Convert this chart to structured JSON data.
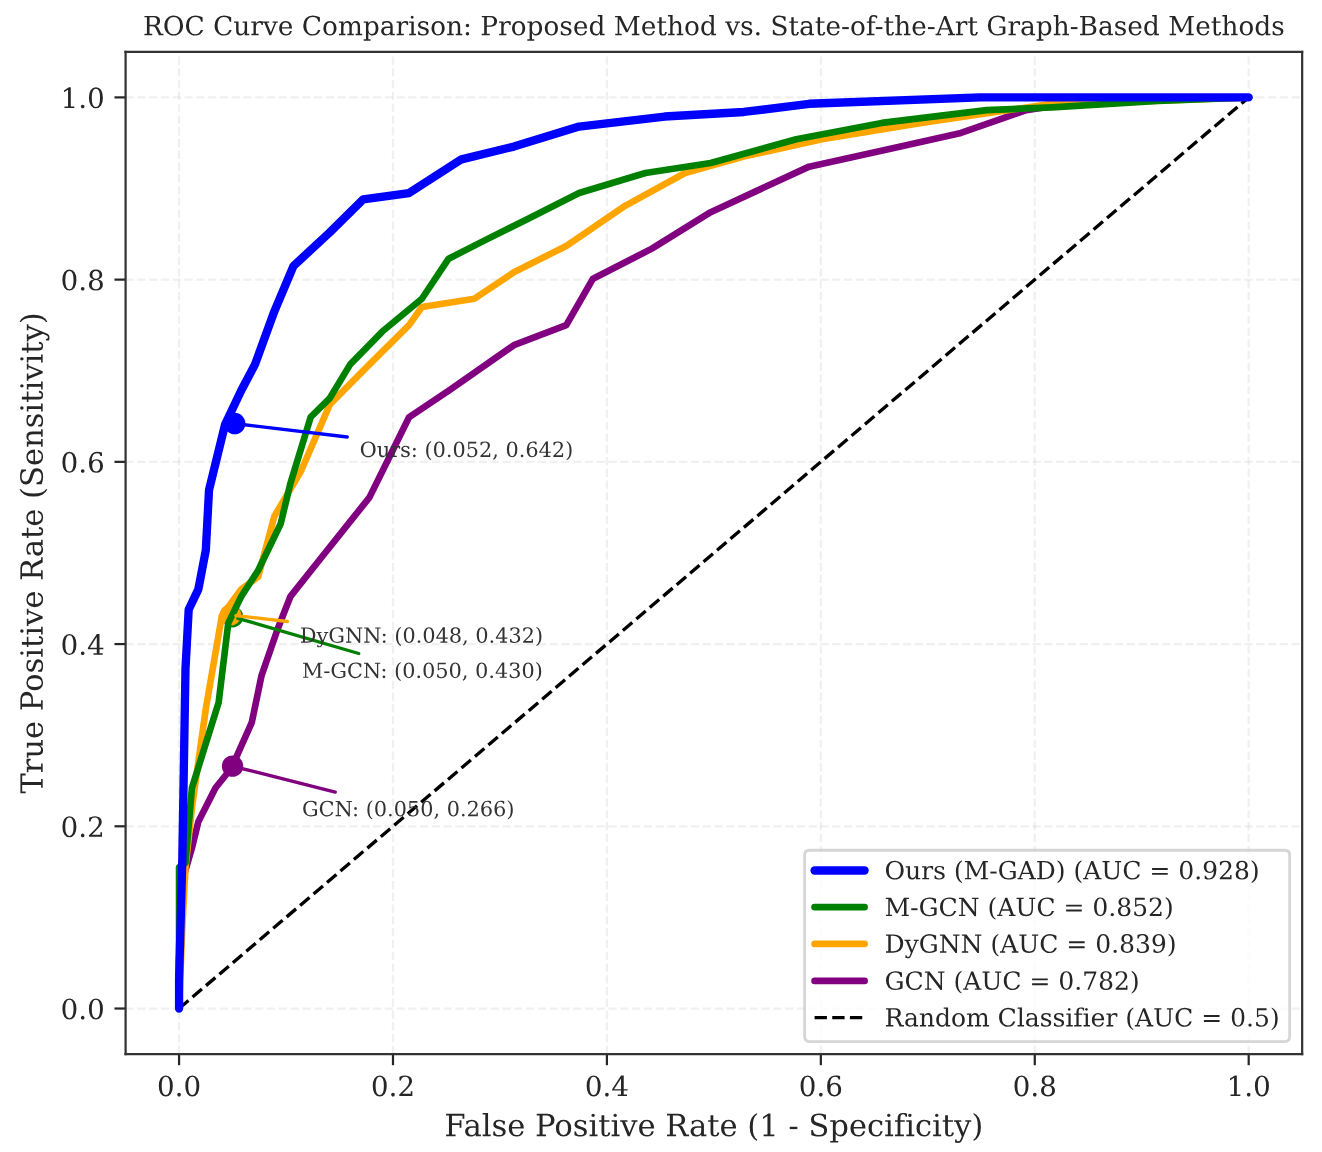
{
  "chart_data": {
    "type": "line",
    "title": "ROC Curve Comparison: Proposed Method vs. State-of-the-Art Graph-Based Methods",
    "xlabel": "False Positive Rate (1 - Specificity)",
    "ylabel": "True Positive Rate (Sensitivity)",
    "xlim": [
      -0.05,
      1.05
    ],
    "ylim": [
      -0.05,
      1.05
    ],
    "xticks": [
      {
        "value": 0,
        "label": "0.0"
      },
      {
        "value": 0.2,
        "label": "0.2"
      },
      {
        "value": 0.4,
        "label": "0.4"
      },
      {
        "value": 0.6,
        "label": "0.6"
      },
      {
        "value": 0.8,
        "label": "0.8"
      },
      {
        "value": 1,
        "label": "1.0"
      }
    ],
    "yticks": [
      {
        "value": 0,
        "label": "0.0"
      },
      {
        "value": 0.2,
        "label": "0.2"
      },
      {
        "value": 0.4,
        "label": "0.4"
      },
      {
        "value": 0.6,
        "label": "0.6"
      },
      {
        "value": 0.8,
        "label": "0.8"
      },
      {
        "value": 1,
        "label": "1.0"
      }
    ],
    "grid": true,
    "legend": "bottom right",
    "marker": "none",
    "series": [
      {
        "name": "Ours (M-GAD) (AUC = 0.928)",
        "color": "#0000ff",
        "line_style": "solid",
        "x": [
          0,
          0,
          0.003,
          0.006,
          0.009,
          0.018,
          0.025,
          0.028,
          0.043,
          0.058,
          0.071,
          0.089,
          0.107,
          0.141,
          0.172,
          0.215,
          0.264,
          0.313,
          0.374,
          0.454,
          0.528,
          0.589,
          0.749,
          1
        ],
        "values": [
          0,
          0.031,
          0.162,
          0.373,
          0.438,
          0.46,
          0.503,
          0.569,
          0.641,
          0.678,
          0.707,
          0.765,
          0.815,
          0.852,
          0.888,
          0.895,
          0.932,
          0.946,
          0.968,
          0.979,
          0.984,
          0.993,
          1,
          1
        ]
      },
      {
        "name": "M-GCN (AUC = 0.852)",
        "color": "#008000",
        "line_style": "solid",
        "x": [
          0,
          0,
          0.006,
          0.012,
          0.037,
          0.046,
          0.058,
          0.074,
          0.095,
          0.104,
          0.123,
          0.141,
          0.16,
          0.19,
          0.227,
          0.252,
          0.289,
          0.325,
          0.374,
          0.436,
          0.497,
          0.577,
          0.657,
          0.755,
          0.816,
          0.915,
          1
        ],
        "values": [
          0,
          0.155,
          0.16,
          0.242,
          0.336,
          0.423,
          0.452,
          0.481,
          0.532,
          0.576,
          0.649,
          0.67,
          0.707,
          0.743,
          0.779,
          0.823,
          0.845,
          0.866,
          0.895,
          0.917,
          0.928,
          0.954,
          0.972,
          0.986,
          0.989,
          0.996,
          1
        ]
      },
      {
        "name": "DyGNN (AUC = 0.839)",
        "color": "#ffa500",
        "line_style": "solid",
        "x": [
          0,
          0.003,
          0.006,
          0.012,
          0.025,
          0.04,
          0.058,
          0.074,
          0.089,
          0.114,
          0.141,
          0.178,
          0.215,
          0.227,
          0.276,
          0.313,
          0.362,
          0.417,
          0.473,
          0.528,
          0.601,
          0.694,
          0.816,
          0.91,
          1
        ],
        "values": [
          0,
          0.089,
          0.155,
          0.22,
          0.329,
          0.431,
          0.46,
          0.474,
          0.54,
          0.59,
          0.663,
          0.707,
          0.75,
          0.77,
          0.779,
          0.808,
          0.837,
          0.881,
          0.917,
          0.935,
          0.954,
          0.972,
          0.993,
          0.996,
          1
        ]
      },
      {
        "name": "GCN (AUC = 0.782)",
        "color": "#800080",
        "line_style": "solid",
        "x": [
          0,
          0,
          0.003,
          0.012,
          0.018,
          0.034,
          0.049,
          0.068,
          0.077,
          0.092,
          0.104,
          0.129,
          0.178,
          0.215,
          0.252,
          0.313,
          0.362,
          0.387,
          0.442,
          0.497,
          0.589,
          0.663,
          0.731,
          0.792,
          0.847,
          1
        ],
        "values": [
          0,
          0.053,
          0.14,
          0.176,
          0.205,
          0.242,
          0.264,
          0.314,
          0.365,
          0.416,
          0.452,
          0.489,
          0.561,
          0.649,
          0.678,
          0.728,
          0.75,
          0.801,
          0.834,
          0.874,
          0.924,
          0.943,
          0.961,
          0.986,
          0.996,
          1
        ]
      },
      {
        "name": "Random Classifier (AUC = 0.5)",
        "color": "#000000",
        "line_style": "dashed",
        "x": [
          0,
          1
        ],
        "values": [
          0,
          1
        ]
      }
    ],
    "annotations": [
      {
        "text": "Ours: (0.052, 0.642)",
        "x": 0.052,
        "y": 0.642
      },
      {
        "text": "M-GCN: (0.050, 0.430)",
        "x": 0.05,
        "y": 0.43
      },
      {
        "text": "DyGNN: (0.048, 0.432)",
        "x": 0.048,
        "y": 0.432
      },
      {
        "text": "GCN: (0.050, 0.266)",
        "x": 0.05,
        "y": 0.266
      }
    ]
  }
}
